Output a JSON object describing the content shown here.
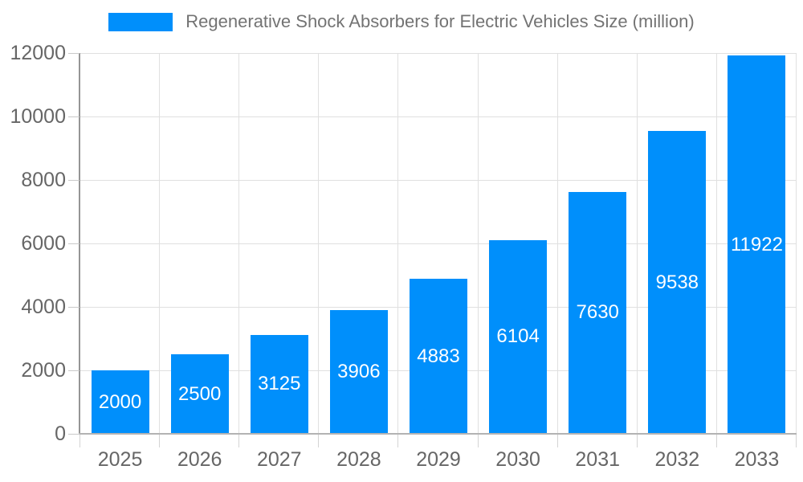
{
  "legend": {
    "label": "Regenerative Shock Absorbers for Electric Vehicles Size (million)",
    "swatch_color": "#008FFB"
  },
  "chart_data": {
    "type": "bar",
    "title": "Regenerative Shock Absorbers for Electric Vehicles Size (million)",
    "categories": [
      "2025",
      "2026",
      "2027",
      "2028",
      "2029",
      "2030",
      "2031",
      "2032",
      "2033"
    ],
    "values": [
      2000,
      2500,
      3125,
      3906,
      4883,
      6104,
      7630,
      9538,
      11922
    ],
    "xlabel": "",
    "ylabel": "",
    "ylim": [
      0,
      12000
    ],
    "yticks": [
      0,
      2000,
      4000,
      6000,
      8000,
      10000,
      12000
    ],
    "grid": true,
    "legend_position": "top-center",
    "bar_color": "#008FFB",
    "value_label_color": "#ffffff",
    "axis_label_color": "#666666",
    "grid_color": "#e0e0e0",
    "background_color": "#ffffff"
  }
}
